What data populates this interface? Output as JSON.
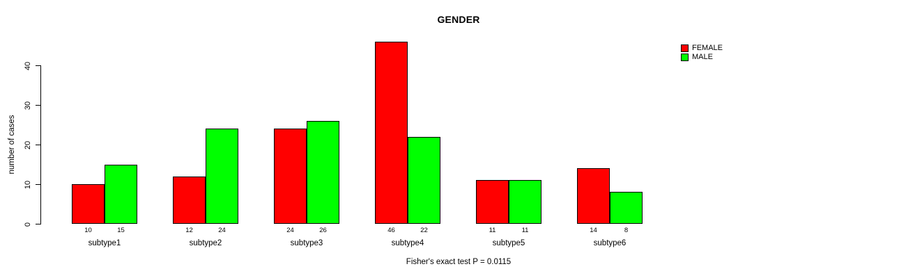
{
  "title": "GENDER",
  "caption": "Fisher's exact test P = 0.0115",
  "chart_data": {
    "type": "bar",
    "title": "GENDER",
    "xlabel": "",
    "ylabel": "number of cases",
    "categories": [
      "subtype1",
      "subtype2",
      "subtype3",
      "subtype4",
      "subtype5",
      "subtype6"
    ],
    "series": [
      {
        "name": "FEMALE",
        "color": "#ff0000",
        "values": [
          10,
          12,
          24,
          46,
          11,
          14
        ]
      },
      {
        "name": "MALE",
        "color": "#00ff00",
        "values": [
          15,
          24,
          26,
          22,
          11,
          8
        ]
      }
    ],
    "bar_value_labels": [
      [
        10,
        15
      ],
      [
        12,
        24
      ],
      [
        24,
        26
      ],
      [
        46,
        22
      ],
      [
        11,
        11
      ],
      [
        14,
        8
      ]
    ],
    "y_ticks": [
      0,
      10,
      20,
      30,
      40
    ],
    "ylim": [
      0,
      46
    ],
    "grid": false,
    "legend_position": "top-right",
    "annotation": "Fisher's exact test P = 0.0115"
  },
  "colors": {
    "female": "#ff0000",
    "male": "#00ff00",
    "axis": "#000000",
    "background": "#ffffff"
  }
}
